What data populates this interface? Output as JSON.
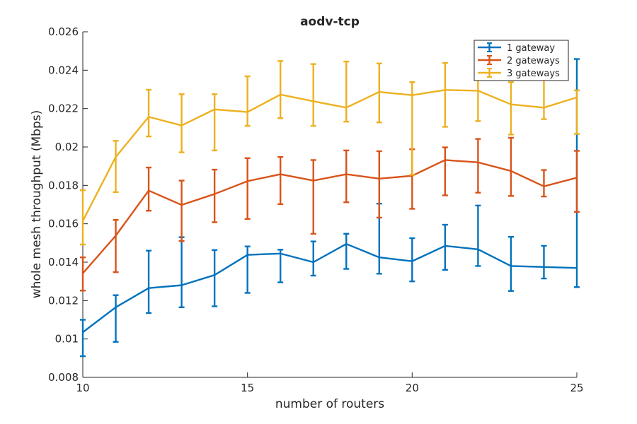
{
  "chart_data": {
    "type": "line",
    "title": "aodv-tcp",
    "xlabel": "number of routers",
    "ylabel": "whole mesh throughput (Mbps)",
    "xlim": [
      10,
      25
    ],
    "ylim": [
      0.008,
      0.026
    ],
    "xticks": [
      10,
      15,
      20,
      25
    ],
    "xtick_labels": [
      "10",
      "15",
      "20",
      "25"
    ],
    "yticks": [
      0.008,
      0.01,
      0.012,
      0.014,
      0.016,
      0.018,
      0.02,
      0.022,
      0.024,
      0.026
    ],
    "ytick_labels": [
      "0.008",
      "0.01",
      "0.012",
      "0.014",
      "0.016",
      "0.018",
      "0.02",
      "0.022",
      "0.024",
      "0.026"
    ],
    "grid": false,
    "legend_position": "top-right",
    "error_bars": true,
    "x": [
      10,
      11,
      12,
      13,
      14,
      15,
      16,
      17,
      18,
      19,
      20,
      21,
      22,
      23,
      24,
      25
    ],
    "series": [
      {
        "name": "1 gateway",
        "color": "#0072BD",
        "values": [
          0.01035,
          0.01165,
          0.01265,
          0.0128,
          0.01333,
          0.01438,
          0.01445,
          0.014,
          0.01495,
          0.01425,
          0.01405,
          0.01485,
          0.01467,
          0.0138,
          0.01375,
          0.0137
        ],
        "err_low": [
          0.0091,
          0.00985,
          0.01135,
          0.01165,
          0.0117,
          0.0124,
          0.01295,
          0.0133,
          0.01365,
          0.0134,
          0.013,
          0.0136,
          0.0138,
          0.0125,
          0.01315,
          0.0127
        ],
        "err_high": [
          0.011,
          0.01228,
          0.0146,
          0.0153,
          0.01463,
          0.01482,
          0.01465,
          0.01508,
          0.01548,
          0.01705,
          0.01525,
          0.01595,
          0.01695,
          0.01532,
          0.01485,
          0.02458
        ]
      },
      {
        "name": "2 gateways",
        "color": "#D95319",
        "values": [
          0.01342,
          0.01538,
          0.01773,
          0.01698,
          0.01755,
          0.01822,
          0.01858,
          0.01825,
          0.01858,
          0.01835,
          0.0185,
          0.01932,
          0.0192,
          0.01875,
          0.01795,
          0.0184
        ],
        "err_low": [
          0.01252,
          0.01348,
          0.01668,
          0.0151,
          0.01608,
          0.01625,
          0.01702,
          0.01548,
          0.01712,
          0.01632,
          0.01678,
          0.01748,
          0.01762,
          0.01745,
          0.01742,
          0.01662
        ],
        "err_high": [
          0.01425,
          0.0162,
          0.01893,
          0.01825,
          0.01882,
          0.01942,
          0.01948,
          0.01932,
          0.01982,
          0.01978,
          0.01988,
          0.01998,
          0.02042,
          0.02048,
          0.0188,
          0.0198
        ]
      },
      {
        "name": "3 gateways",
        "color": "#EDB120",
        "values": [
          0.01615,
          0.01948,
          0.02157,
          0.02112,
          0.02196,
          0.02182,
          0.02273,
          0.02238,
          0.02205,
          0.02287,
          0.0227,
          0.02297,
          0.02293,
          0.02222,
          0.02205,
          0.02258
        ],
        "err_low": [
          0.01492,
          0.01765,
          0.02055,
          0.01972,
          0.01982,
          0.0211,
          0.0215,
          0.0211,
          0.02132,
          0.02128,
          0.01855,
          0.02105,
          0.02135,
          0.02065,
          0.02145,
          0.02068
        ],
        "err_high": [
          0.01775,
          0.02032,
          0.02298,
          0.02275,
          0.02275,
          0.02368,
          0.02448,
          0.02432,
          0.02445,
          0.02435,
          0.02338,
          0.02438,
          0.02472,
          0.02338,
          0.02388,
          0.02295
        ]
      }
    ]
  }
}
